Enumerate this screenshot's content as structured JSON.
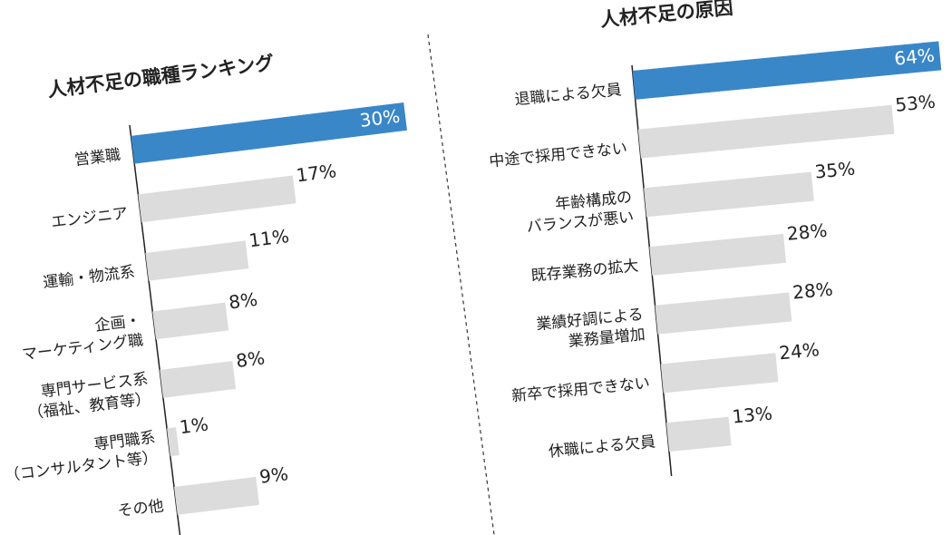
{
  "chart_data": [
    {
      "type": "bar",
      "title": "人材不足の職種ランキング",
      "categories": [
        "営業職",
        "エンジニア",
        "運輸・物流系",
        "企画・\nマーケティング職",
        "専門サービス系\n（福祉、教育等）",
        "専門職系\n（コンサルタント等）",
        "その他"
      ],
      "values": [
        30,
        17,
        11,
        8,
        8,
        1,
        9
      ],
      "value_labels": [
        "30%",
        "17%",
        "11%",
        "8%",
        "8%",
        "1%",
        "9%"
      ],
      "colors": [
        "#3a87c8",
        "#dcdcdc",
        "#dcdcdc",
        "#dcdcdc",
        "#dcdcdc",
        "#dcdcdc",
        "#dcdcdc"
      ]
    },
    {
      "type": "bar",
      "title": "人材不足の原因",
      "categories": [
        "退職による欠員",
        "中途で採用できない",
        "年齢構成の\nバランスが悪い",
        "既存業務の拡大",
        "業績好調による\n業務量増加",
        "新卒で採用できない",
        "休職による欠員"
      ],
      "values": [
        64,
        53,
        35,
        28,
        28,
        24,
        13
      ],
      "value_labels": [
        "64%",
        "53%",
        "35%",
        "28%",
        "28%",
        "24%",
        "13%"
      ],
      "colors": [
        "#3a87c8",
        "#dcdcdc",
        "#dcdcdc",
        "#dcdcdc",
        "#dcdcdc",
        "#dcdcdc",
        "#dcdcdc"
      ]
    }
  ]
}
